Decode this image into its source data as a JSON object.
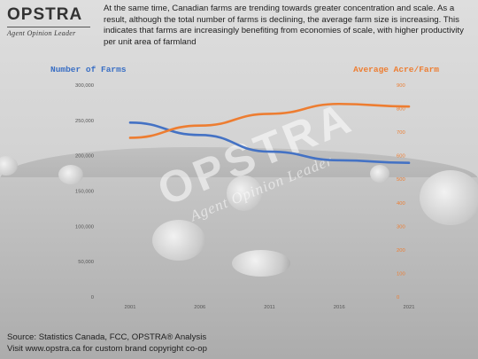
{
  "brand": {
    "logo_text": "OPSTRA",
    "tagline": "Agent Opinion Leader"
  },
  "intro_text": "At the same time, Canadian farms are trending towards greater concentration and scale. As a result, although the total number of farms is declining, the average farm size is increasing. This indicates that farms are increasingly benefiting from economies of scale, with higher productivity per unit area of farmland",
  "watermark": {
    "main": "OPSTRA",
    "sub": "Agent Opinion Leader"
  },
  "colors": {
    "farms_line": "#4472c4",
    "acre_line": "#ed7d31"
  },
  "chart_data": {
    "type": "line",
    "title": "",
    "x": [
      "2001",
      "2006",
      "2011",
      "2016",
      "2021"
    ],
    "series": [
      {
        "name": "Number of Farms",
        "axis": "left",
        "values": [
          246923,
          229373,
          205730,
          193492,
          189874
        ]
      },
      {
        "name": "Average Acre/Farm",
        "axis": "right",
        "values": [
          676,
          728,
          778,
          820,
          809
        ]
      }
    ],
    "y_left": {
      "label": "Number of Farms",
      "range": [
        0,
        300000
      ],
      "ticks": [
        "0",
        "50,000",
        "100,000",
        "150,000",
        "200,000",
        "250,000",
        "300,000"
      ]
    },
    "y_right": {
      "label": "Average Acre/Farm",
      "range": [
        0,
        900
      ],
      "ticks": [
        "0",
        "100",
        "200",
        "300",
        "400",
        "500",
        "600",
        "700",
        "800",
        "900"
      ]
    },
    "grid": false,
    "legend": "axis titles"
  },
  "footer": {
    "source": "Source: Statistics Canada, FCC, OPSTRA® Analysis",
    "visit": "Visit www.opstra.ca for custom brand copyright co-op"
  }
}
